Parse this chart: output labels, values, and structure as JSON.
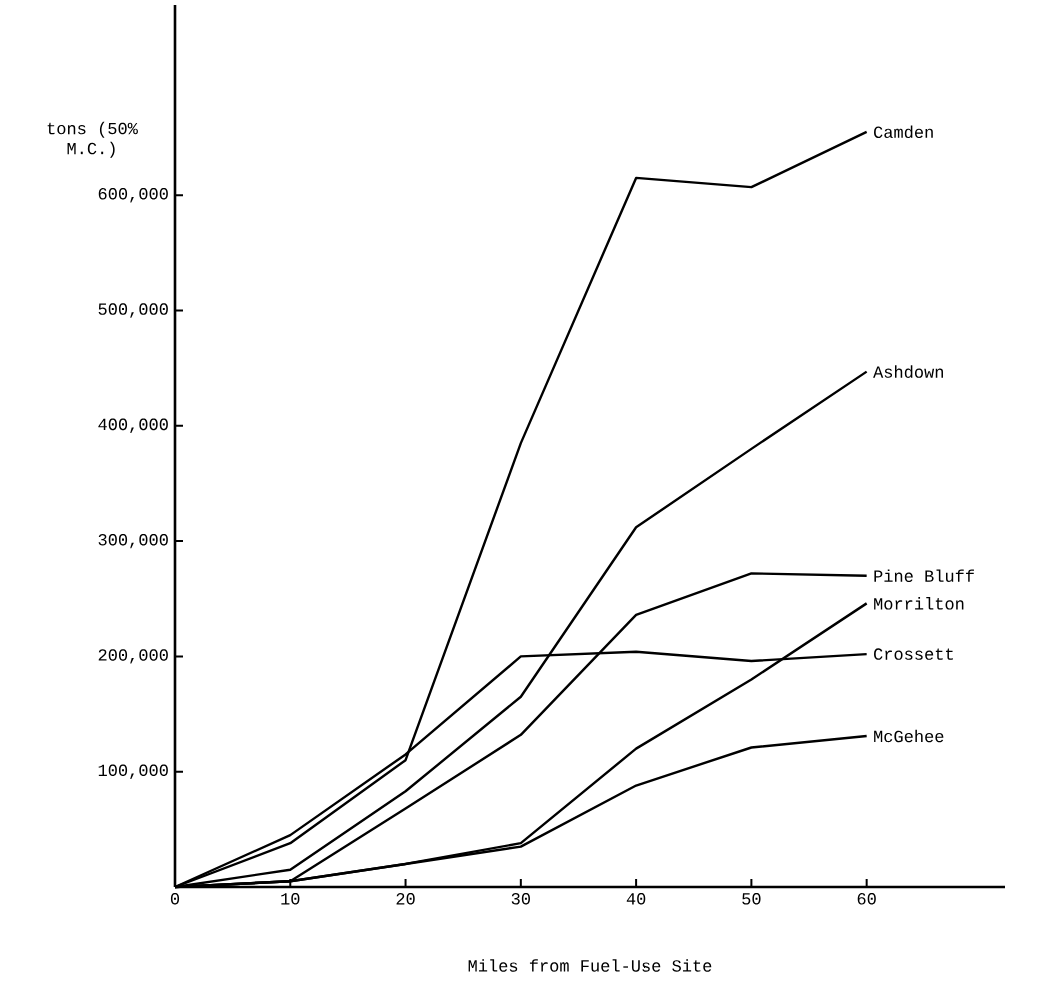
{
  "chart_data": {
    "type": "line",
    "xlabel": "Miles from Fuel-Use Site",
    "ylabel": "tons (50% M.C.)",
    "x": [
      0,
      10,
      20,
      30,
      40,
      50,
      60
    ],
    "series": [
      {
        "name": "Camden",
        "color": "#000000",
        "values": [
          0,
          38000,
          110000,
          385000,
          615000,
          607000,
          655000
        ]
      },
      {
        "name": "Ashdown",
        "color": "#000000",
        "values": [
          0,
          15000,
          83000,
          165000,
          312000,
          380000,
          447000
        ]
      },
      {
        "name": "Pine Bluff",
        "color": "#000000",
        "values": [
          0,
          5000,
          68000,
          132000,
          236000,
          272000,
          270000
        ]
      },
      {
        "name": "Morrilton",
        "color": "#000000",
        "values": [
          0,
          5000,
          20000,
          38000,
          120000,
          180000,
          246000
        ]
      },
      {
        "name": "Crossett",
        "color": "#000000",
        "values": [
          0,
          45000,
          115000,
          200000,
          204000,
          196000,
          202000
        ]
      },
      {
        "name": "McGehee",
        "color": "#000000",
        "values": [
          0,
          5000,
          20000,
          35000,
          88000,
          121000,
          131000
        ]
      }
    ],
    "xlim": [
      0,
      72
    ],
    "ylim": [
      0,
      765000
    ],
    "xticks": [
      0,
      10,
      20,
      30,
      40,
      50,
      60
    ],
    "yticks": [
      {
        "value": 100000,
        "label": "100,000"
      },
      {
        "value": 200000,
        "label": "200,000"
      },
      {
        "value": 300000,
        "label": "300,000"
      },
      {
        "value": 400000,
        "label": "400,000"
      },
      {
        "value": 500000,
        "label": "500,000"
      },
      {
        "value": 600000,
        "label": "600,000"
      }
    ],
    "grid": false,
    "legend": false,
    "marker": "none",
    "line_style": "solid"
  }
}
